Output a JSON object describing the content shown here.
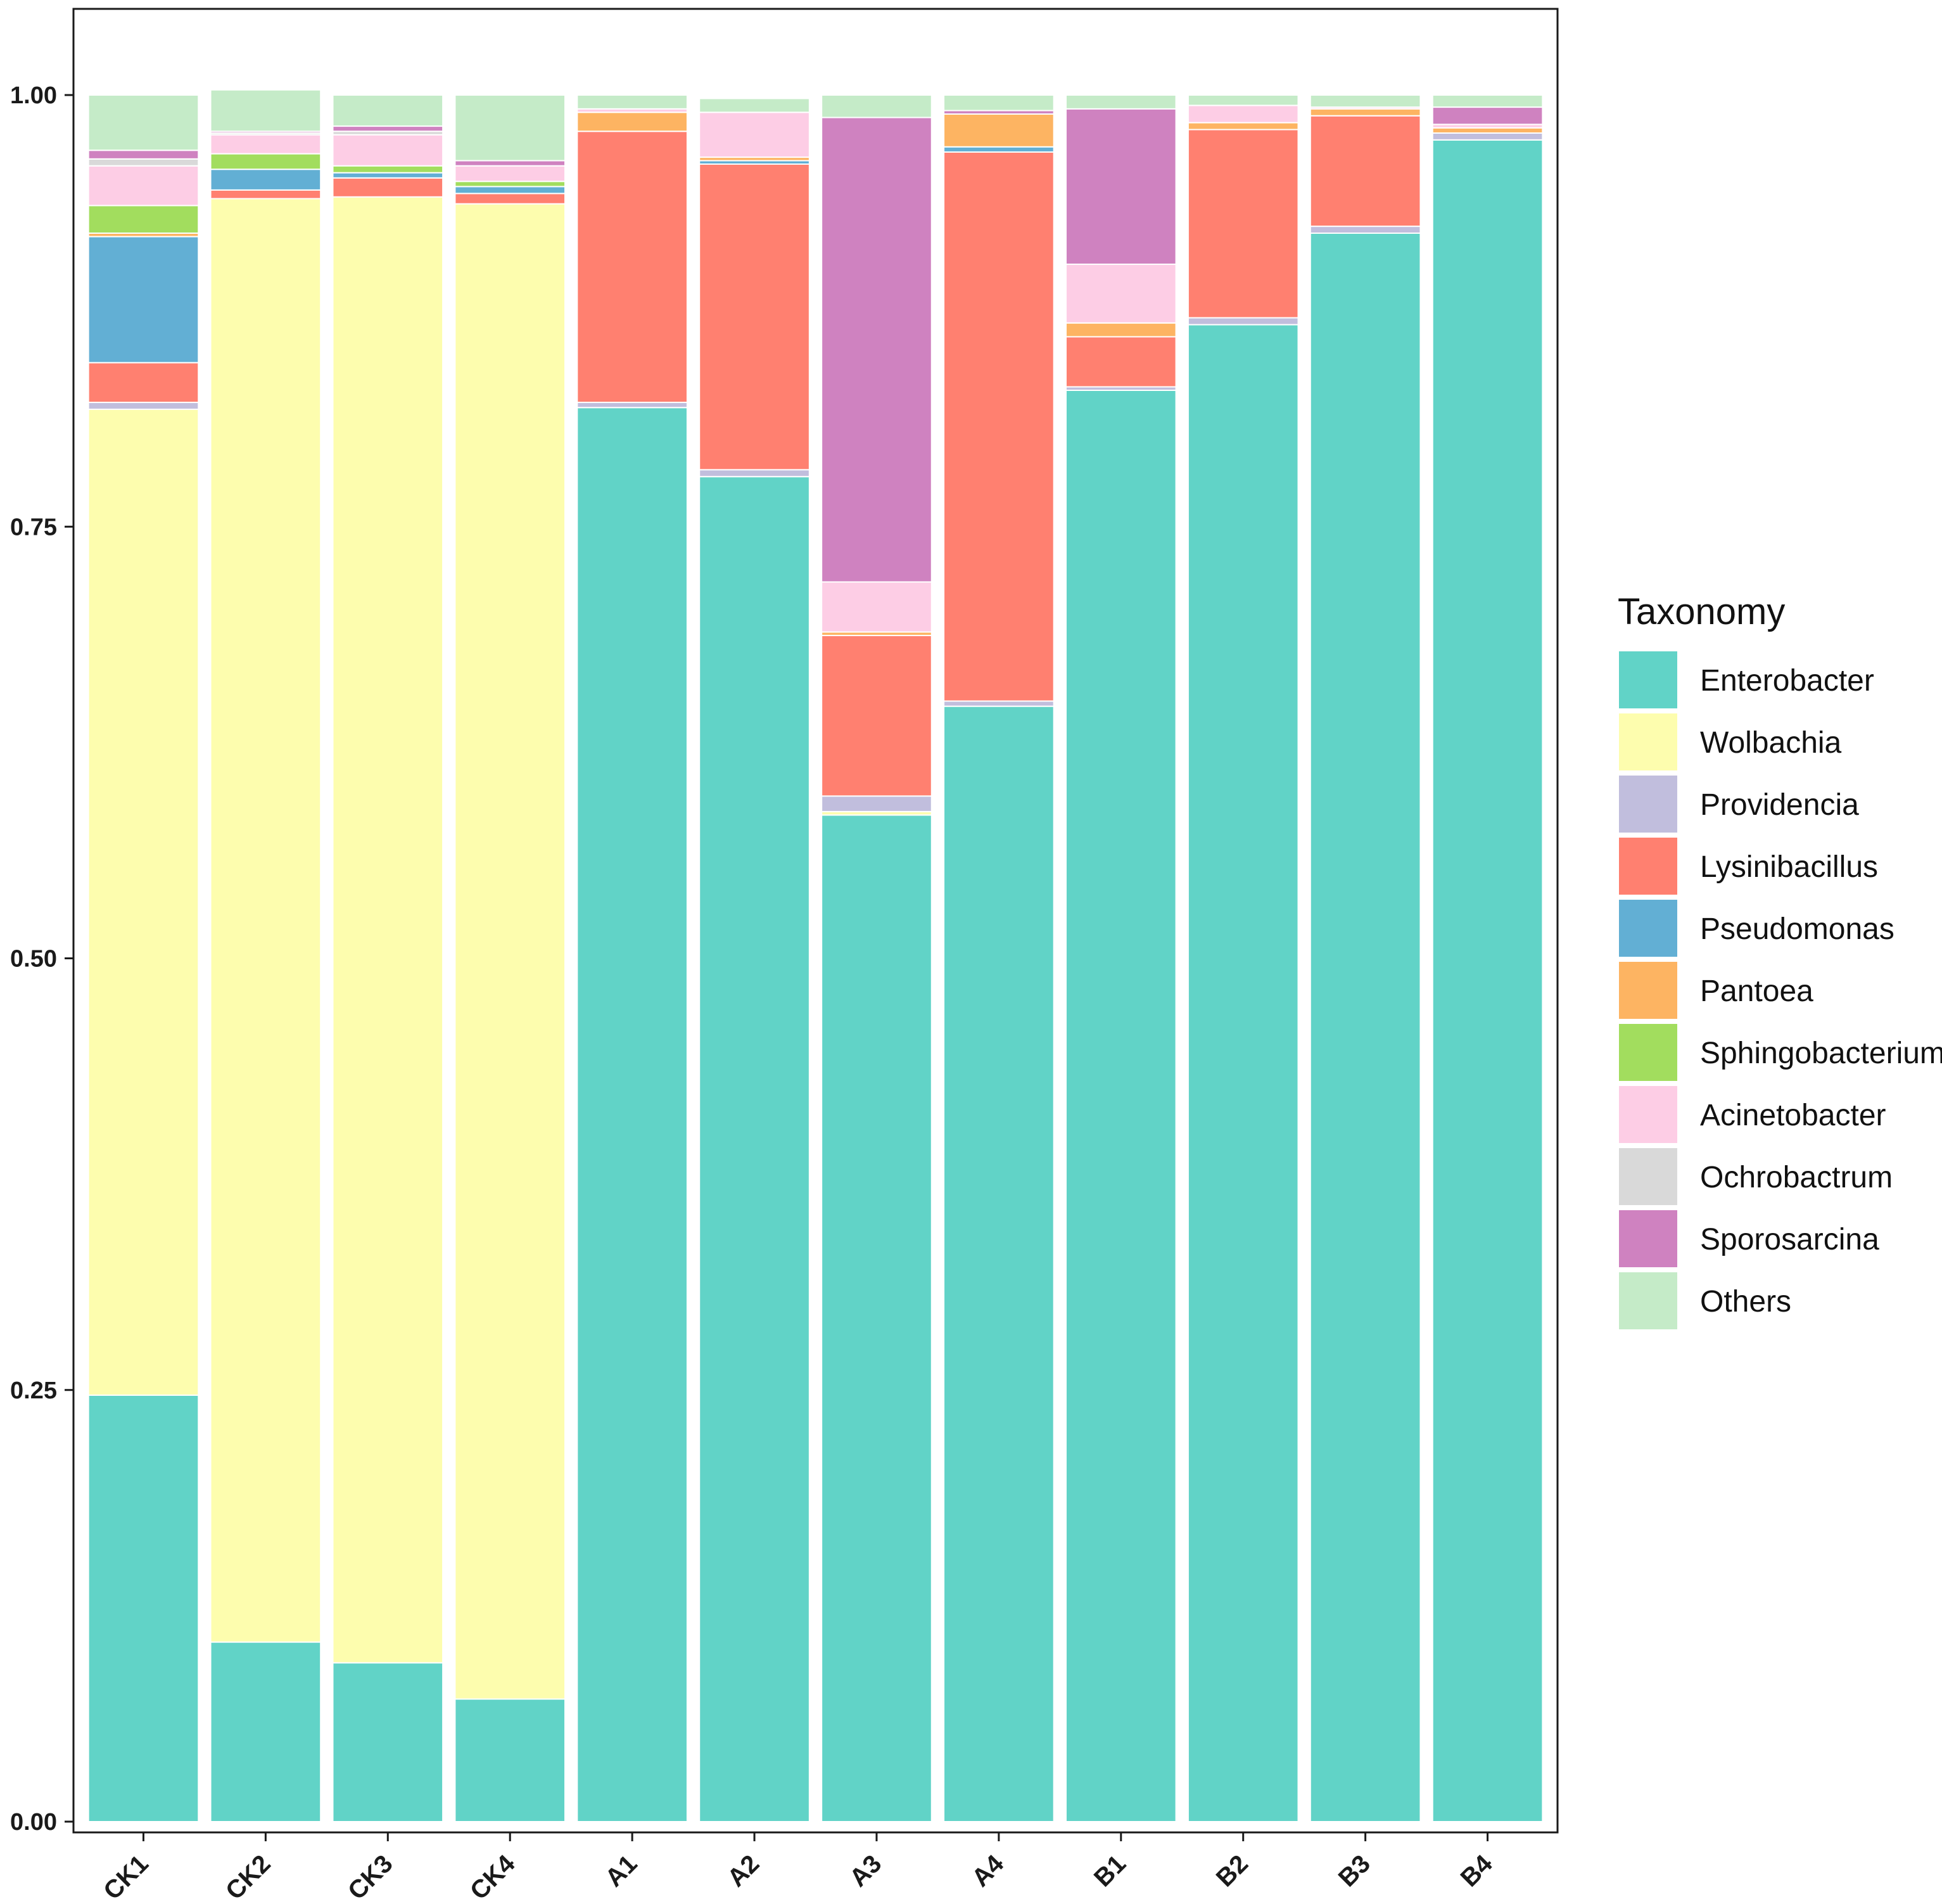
{
  "chart_data": {
    "type": "bar",
    "stacked": true,
    "title": "",
    "xlabel": "",
    "ylabel": "",
    "ylim": [
      0,
      1.05
    ],
    "yticks": [
      0.0,
      0.25,
      0.5,
      0.75,
      1.0
    ],
    "ytick_labels": [
      "0.00",
      "0.25",
      "0.50",
      "0.75",
      "1.00"
    ],
    "grid": false,
    "legend_position": "right",
    "legend_title": "Taxonomy",
    "categories": [
      "CK1",
      "CK2",
      "CK3",
      "CK4",
      "A1",
      "A2",
      "A3",
      "A4",
      "B1",
      "B2",
      "B3",
      "B4"
    ],
    "series": [
      {
        "name": "Enterobacter",
        "color": "#61D3C7",
        "values": [
          0.247,
          0.104,
          0.092,
          0.071,
          0.819,
          0.779,
          0.583,
          0.646,
          0.829,
          0.867,
          0.92,
          0.974
        ]
      },
      {
        "name": "Wolbachia",
        "color": "#FDFDAE",
        "values": [
          0.571,
          0.836,
          0.849,
          0.866,
          0.0,
          0.0,
          0.002,
          0.0,
          0.0,
          0.0,
          0.0,
          0.0
        ]
      },
      {
        "name": "Providencia",
        "color": "#C1BEDD",
        "values": [
          0.004,
          0.0,
          0.0,
          0.0,
          0.003,
          0.004,
          0.009,
          0.003,
          0.002,
          0.004,
          0.004,
          0.004
        ]
      },
      {
        "name": "Lysinibacillus",
        "color": "#FF8070",
        "values": [
          0.023,
          0.005,
          0.011,
          0.006,
          0.157,
          0.177,
          0.093,
          0.318,
          0.029,
          0.109,
          0.064,
          0.0
        ]
      },
      {
        "name": "Pseudomonas",
        "color": "#62AFD4",
        "values": [
          0.073,
          0.012,
          0.003,
          0.004,
          0.0,
          0.002,
          0.0,
          0.003,
          0.0,
          0.0,
          0.0,
          0.0
        ]
      },
      {
        "name": "Pantoea",
        "color": "#FDB462",
        "values": [
          0.002,
          0.0,
          0.0,
          0.0,
          0.011,
          0.002,
          0.002,
          0.019,
          0.008,
          0.004,
          0.004,
          0.003
        ]
      },
      {
        "name": "Sphingobacterium",
        "color": "#A2DD5E",
        "values": [
          0.016,
          0.009,
          0.004,
          0.003,
          0.0,
          0.0,
          0.0,
          0.0,
          0.0,
          0.0,
          0.0,
          0.0
        ]
      },
      {
        "name": "Acinetobacter",
        "color": "#FDCDE5",
        "values": [
          0.023,
          0.011,
          0.018,
          0.009,
          0.002,
          0.026,
          0.029,
          0.0,
          0.034,
          0.01,
          0.001,
          0.002
        ]
      },
      {
        "name": "Ochrobactrum",
        "color": "#D9D9D9",
        "values": [
          0.004,
          0.001,
          0.002,
          0.0,
          0.0,
          0.0,
          0.0,
          0.0,
          0.0,
          0.0,
          0.0,
          0.0
        ]
      },
      {
        "name": "Sporosarcina",
        "color": "#CF82C0",
        "values": [
          0.005,
          0.001,
          0.003,
          0.003,
          0.0,
          0.0,
          0.269,
          0.002,
          0.09,
          0.0,
          0.0,
          0.01
        ]
      },
      {
        "name": "Others",
        "color": "#C5EBC8",
        "values": [
          0.032,
          0.024,
          0.018,
          0.038,
          0.008,
          0.008,
          0.013,
          0.009,
          0.008,
          0.006,
          0.007,
          0.007
        ]
      }
    ]
  }
}
